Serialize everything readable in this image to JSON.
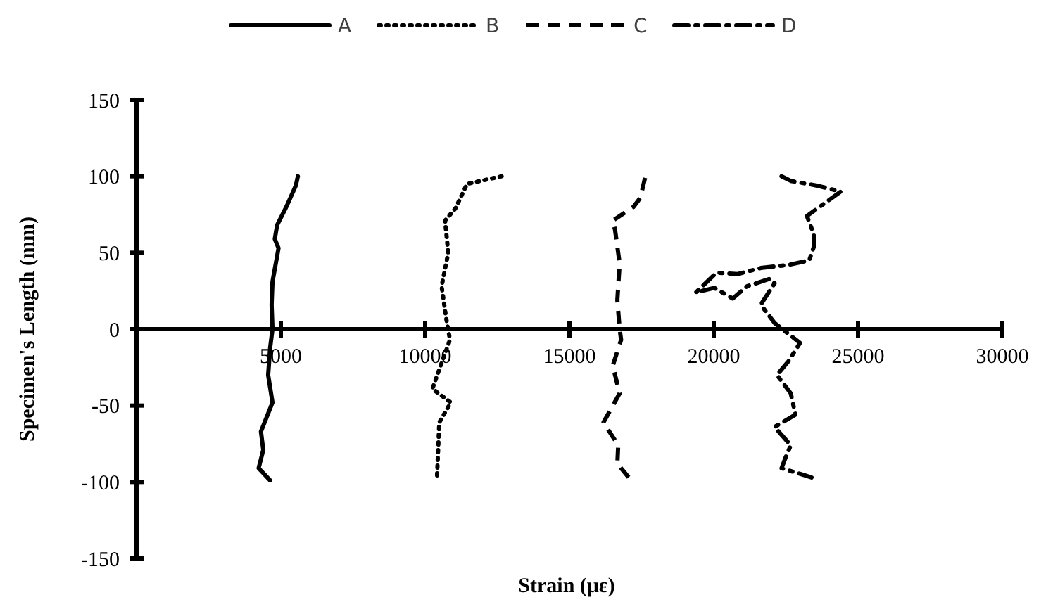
{
  "chart_data": {
    "type": "line",
    "xlabel": "Strain (με)",
    "ylabel": "Specimen's Length (mm)",
    "xlim": [
      0,
      30000
    ],
    "ylim": [
      -150,
      150
    ],
    "xticks": [
      5000,
      10000,
      15000,
      20000,
      25000,
      30000
    ],
    "yticks": [
      -150,
      -100,
      -50,
      0,
      50,
      100,
      150
    ],
    "legend": "top",
    "grid": false,
    "marker": "none",
    "series": [
      {
        "name": "A",
        "color": "#000000",
        "line_style": "solid",
        "x": [
          5590,
          5520,
          5190,
          4870,
          4790,
          4920,
          4710,
          4680,
          4710,
          4630,
          4560,
          4710,
          4310,
          4390,
          4230,
          4630
        ],
        "values": [
          100,
          94,
          80,
          68,
          59,
          53,
          31,
          16,
          0,
          -12,
          -30,
          -48,
          -67,
          -79,
          -91,
          -99
        ]
      },
      {
        "name": "B",
        "color": "#000000",
        "line_style": "dotted",
        "x": [
          12650,
          11450,
          11050,
          10690,
          10800,
          10570,
          10730,
          10860,
          10250,
          10890,
          10490,
          10450,
          10410
        ],
        "values": [
          100,
          95,
          79,
          71,
          50,
          28,
          7,
          -7,
          -39,
          -48,
          -61,
          -79,
          -97
        ]
      },
      {
        "name": "C",
        "color": "#000000",
        "line_style": "dashed",
        "x": [
          17620,
          17460,
          17220,
          16500,
          16580,
          16740,
          16660,
          16740,
          16790,
          16500,
          16740,
          16180,
          16690,
          16660,
          17140
        ],
        "values": [
          99,
          86,
          80,
          71,
          65,
          43,
          19,
          0,
          -7,
          -24,
          -42,
          -61,
          -76,
          -88,
          -99
        ]
      },
      {
        "name": "D",
        "color": "#000000",
        "line_style": "dashdot",
        "x": [
          22350,
          22670,
          23550,
          24400,
          23230,
          23470,
          23470,
          23310,
          22590,
          21630,
          20830,
          20100,
          19380,
          20020,
          20660,
          21150,
          21950,
          22110,
          21630,
          22110,
          22990,
          22590,
          22190,
          22670,
          22830,
          22110,
          22670,
          22510,
          22350,
          23390
        ],
        "values": [
          100,
          97,
          94,
          90,
          74,
          62,
          54,
          45,
          42,
          40,
          36,
          37,
          24,
          27,
          20,
          28,
          33,
          30,
          16,
          4,
          -9,
          -21,
          -30,
          -42,
          -56,
          -64,
          -76,
          -83,
          -91,
          -97
        ]
      }
    ]
  }
}
